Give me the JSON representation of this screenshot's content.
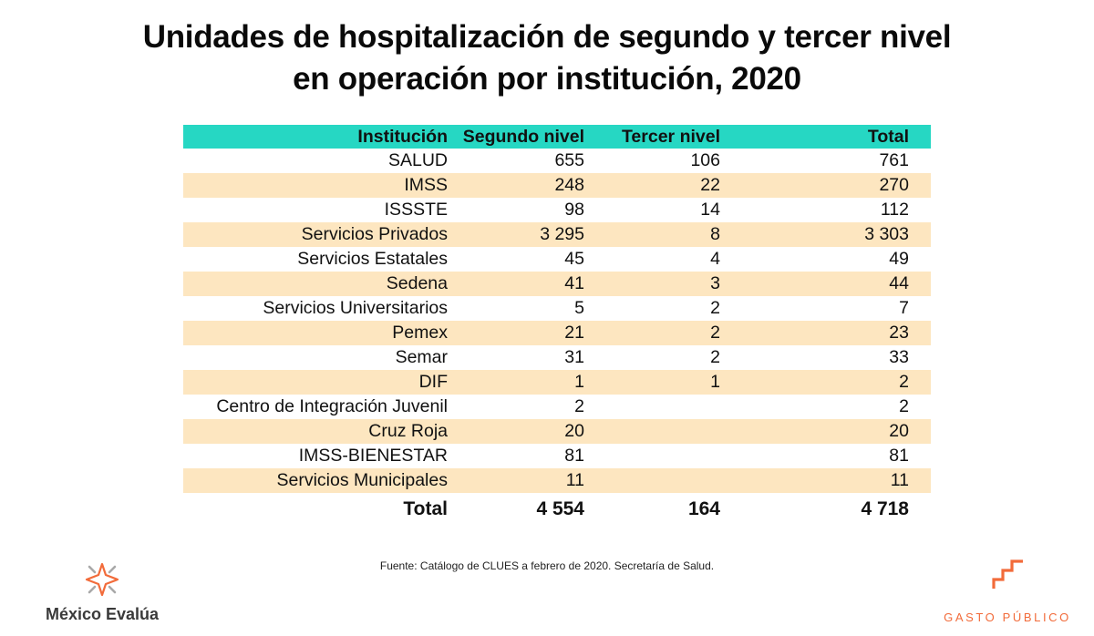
{
  "title": {
    "line1": "Unidades de hospitalización de segundo y tercer nivel",
    "line2": "en operación por institución, 2020"
  },
  "table": {
    "headers": [
      "Institución",
      "Segundo nivel",
      "Tercer nivel",
      "Total"
    ],
    "rows": [
      {
        "institucion": "SALUD",
        "segundo": "655",
        "tercero": "106",
        "total": "761"
      },
      {
        "institucion": "IMSS",
        "segundo": "248",
        "tercero": "22",
        "total": "270"
      },
      {
        "institucion": "ISSSTE",
        "segundo": "98",
        "tercero": "14",
        "total": "112"
      },
      {
        "institucion": "Servicios Privados",
        "segundo": "3 295",
        "tercero": "8",
        "total": "3 303"
      },
      {
        "institucion": "Servicios Estatales",
        "segundo": "45",
        "tercero": "4",
        "total": "49"
      },
      {
        "institucion": "Sedena",
        "segundo": "41",
        "tercero": "3",
        "total": "44"
      },
      {
        "institucion": "Servicios Universitarios",
        "segundo": "5",
        "tercero": "2",
        "total": "7"
      },
      {
        "institucion": "Pemex",
        "segundo": "21",
        "tercero": "2",
        "total": "23"
      },
      {
        "institucion": "Semar",
        "segundo": "31",
        "tercero": "2",
        "total": "33"
      },
      {
        "institucion": "DIF",
        "segundo": "1",
        "tercero": "1",
        "total": "2"
      },
      {
        "institucion": "Centro de Integración Juvenil",
        "segundo": "2",
        "tercero": "",
        "total": "2"
      },
      {
        "institucion": "Cruz Roja",
        "segundo": "20",
        "tercero": "",
        "total": "20"
      },
      {
        "institucion": "IMSS-BIENESTAR",
        "segundo": "81",
        "tercero": "",
        "total": "81"
      },
      {
        "institucion": "Servicios Municipales",
        "segundo": "11",
        "tercero": "",
        "total": "11"
      }
    ],
    "total_row": {
      "institucion": "Total",
      "segundo": "4 554",
      "tercero": "164",
      "total": "4 718"
    }
  },
  "source": "Fuente: Catálogo de CLUES a febrero de 2020. Secretaría de Salud.",
  "logos": {
    "left": {
      "name": "México Evalúa",
      "icon": "star-burst-icon"
    },
    "right": {
      "name": "GASTO PÚBLICO",
      "icon": "stairs-icon"
    }
  },
  "colors": {
    "header_bg": "#26d7c3",
    "alt_row_bg": "#fde6c0",
    "accent_orange": "#f26b3a",
    "logo_gray": "#a9a9a9"
  }
}
